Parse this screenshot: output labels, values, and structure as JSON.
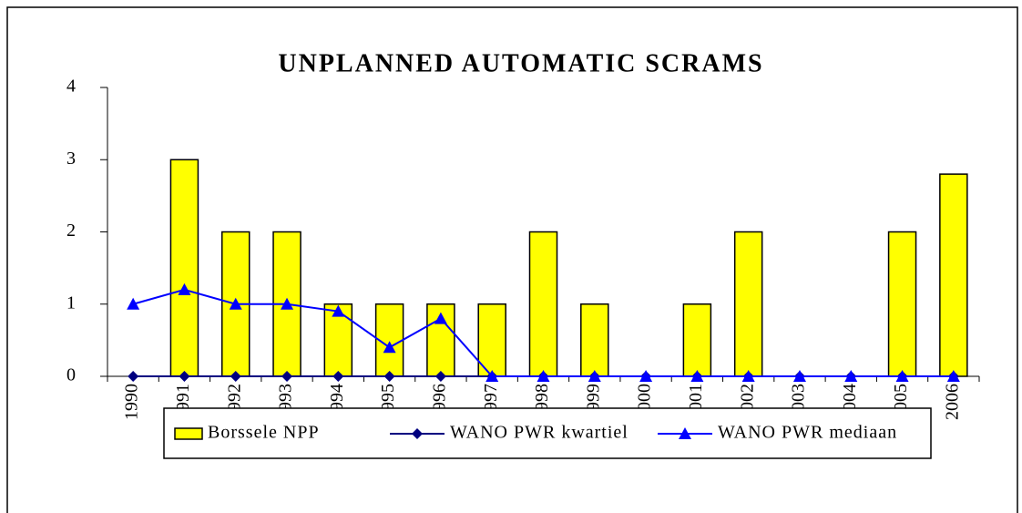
{
  "chart_data": {
    "type": "bar",
    "title": "UNPLANNED AUTOMATIC SCRAMS",
    "categories": [
      "1990",
      "1991",
      "1992",
      "1993",
      "1994",
      "1995",
      "1996",
      "1997",
      "1998",
      "1999",
      "2000",
      "2001",
      "2002",
      "2003",
      "2004",
      "2005",
      "2006"
    ],
    "series": [
      {
        "name": "Borssele NPP",
        "type": "bar",
        "color": "#ffff00",
        "values": [
          0,
          3,
          2,
          2,
          1,
          1,
          1,
          1,
          2,
          1,
          0,
          1,
          2,
          0,
          0,
          2,
          2.8
        ]
      },
      {
        "name": "WANO PWR kwartiel",
        "type": "line",
        "marker": "diamond",
        "color": "#000080",
        "values": [
          0,
          0,
          0,
          0,
          0,
          0,
          0,
          0,
          0,
          0,
          0,
          0,
          0,
          0,
          0,
          0,
          0
        ]
      },
      {
        "name": "WANO PWR mediaan",
        "type": "line",
        "marker": "triangle",
        "color": "#0000ff",
        "values": [
          1,
          1.2,
          1,
          1,
          0.9,
          0.4,
          0.8,
          0,
          0,
          0,
          0,
          0,
          0,
          0,
          0,
          0,
          0
        ]
      }
    ],
    "ylim": [
      0,
      4
    ],
    "yticks": [
      0,
      1,
      2,
      3,
      4
    ],
    "legend": "bottom"
  }
}
